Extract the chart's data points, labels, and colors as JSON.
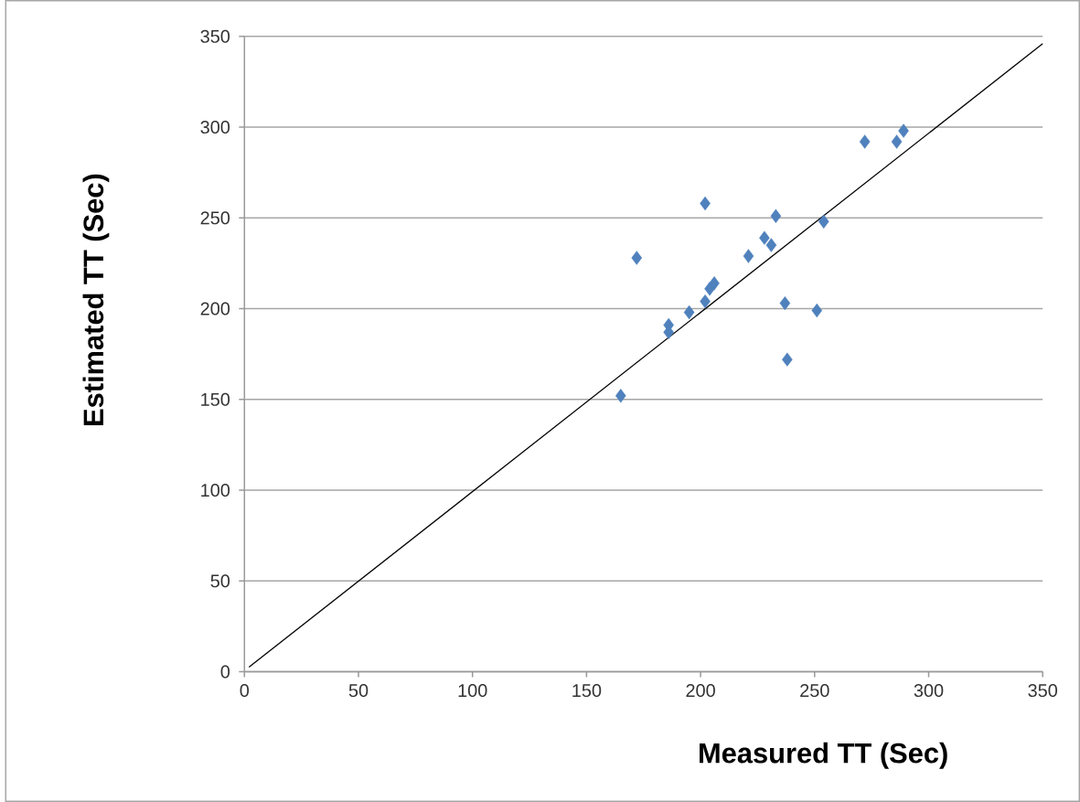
{
  "chart_data": {
    "type": "scatter",
    "xlabel": "Measured TT (Sec)",
    "ylabel": "Estimated TT (Sec)",
    "marker": "diamond",
    "grid": "y",
    "xlim": [
      0,
      350
    ],
    "ylim": [
      0,
      350
    ],
    "xticks": [
      0,
      50,
      100,
      150,
      200,
      250,
      300,
      350
    ],
    "yticks": [
      0,
      50,
      100,
      150,
      200,
      250,
      300,
      350
    ],
    "series": [
      {
        "color": "#4f81bd",
        "x": [
          165,
          172,
          202,
          186,
          186,
          195,
          202,
          206,
          204,
          221,
          228,
          231,
          233,
          254,
          237,
          251,
          238,
          272,
          286,
          289
        ],
        "values": [
          152,
          228,
          258,
          191,
          187,
          198,
          204,
          214,
          211,
          229,
          239,
          235,
          251,
          248,
          203,
          199,
          172,
          292,
          292,
          298
        ]
      },
      {
        "type": "line",
        "marker": "none",
        "color": "#000000",
        "x": [
          2,
          350
        ],
        "values": [
          2.5,
          346
        ]
      }
    ]
  }
}
